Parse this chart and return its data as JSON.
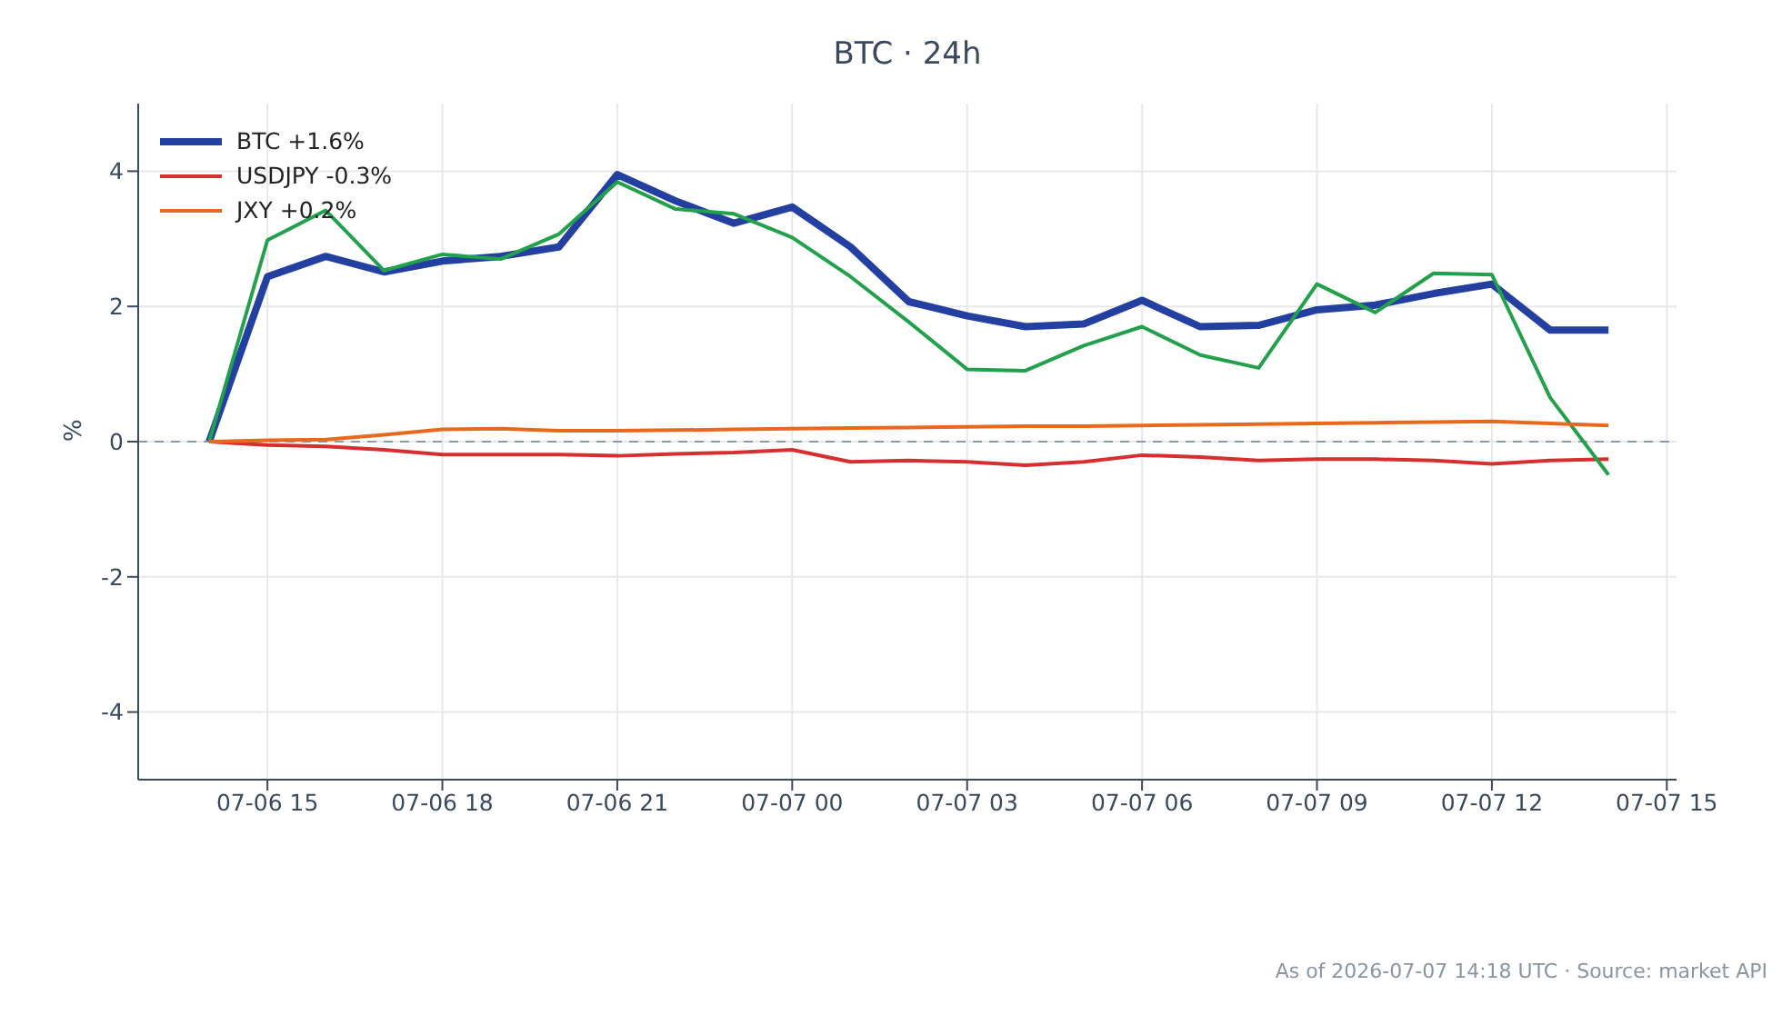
{
  "chart_data": {
    "type": "line",
    "title": "BTC · 24h",
    "ylabel": "%",
    "x": [
      "2026-07-06T14:00",
      "2026-07-06T15:00",
      "2026-07-06T16:00",
      "2026-07-06T17:00",
      "2026-07-06T18:00",
      "2026-07-06T19:00",
      "2026-07-06T20:00",
      "2026-07-06T21:00",
      "2026-07-06T22:00",
      "2026-07-06T23:00",
      "2026-07-07T00:00",
      "2026-07-07T01:00",
      "2026-07-07T02:00",
      "2026-07-07T03:00",
      "2026-07-07T04:00",
      "2026-07-07T05:00",
      "2026-07-07T06:00",
      "2026-07-07T07:00",
      "2026-07-07T08:00",
      "2026-07-07T09:00",
      "2026-07-07T10:00",
      "2026-07-07T11:00",
      "2026-07-07T12:00",
      "2026-07-07T13:00",
      "2026-07-07T14:00"
    ],
    "series": [
      {
        "name": "BTC +1.6%",
        "color": "#2340a0",
        "values": [
          0,
          2.44,
          2.74,
          2.51,
          2.67,
          2.74,
          2.88,
          3.95,
          3.56,
          3.23,
          3.47,
          2.88,
          2.07,
          1.86,
          1.7,
          1.74,
          2.09,
          1.7,
          1.72,
          1.95,
          2.02,
          2.19,
          2.33,
          1.65,
          1.65
        ]
      },
      {
        "name": "USDJPY -0.3%",
        "color": "#d62f2f",
        "values": [
          0,
          -0.05,
          -0.07,
          -0.12,
          -0.19,
          -0.19,
          -0.19,
          -0.21,
          -0.18,
          -0.16,
          -0.12,
          -0.3,
          -0.28,
          -0.3,
          -0.35,
          -0.3,
          -0.2,
          -0.23,
          -0.28,
          -0.26,
          -0.26,
          -0.28,
          -0.33,
          -0.28,
          -0.26
        ]
      },
      {
        "color": "#22a04b",
        "values": [
          0,
          2.98,
          3.42,
          2.53,
          2.77,
          2.7,
          3.07,
          3.84,
          3.44,
          3.37,
          3.02,
          2.44,
          1.77,
          1.07,
          1.05,
          1.42,
          1.7,
          1.28,
          1.09,
          2.33,
          1.91,
          2.49,
          2.47,
          0.65,
          -0.49
        ]
      },
      {
        "name": "JXY +0.2%",
        "color": "#e8691e",
        "values": [
          0,
          0.02,
          0.03,
          0.1,
          0.18,
          0.19,
          0.16,
          0.16,
          0.17,
          0.18,
          0.19,
          0.2,
          0.21,
          0.22,
          0.23,
          0.23,
          0.24,
          0.25,
          0.26,
          0.27,
          0.28,
          0.29,
          0.3,
          0.27,
          0.24
        ]
      }
    ],
    "xlim": [
      "2026-07-06T12:47",
      "2026-07-07T15:10"
    ],
    "xticks": [
      {
        "value": "2026-07-06T15:00",
        "label": "07-06 15"
      },
      {
        "value": "2026-07-06T18:00",
        "label": "07-06 18"
      },
      {
        "value": "2026-07-06T21:00",
        "label": "07-06 21"
      },
      {
        "value": "2026-07-07T00:00",
        "label": "07-07 00"
      },
      {
        "value": "2026-07-07T03:00",
        "label": "07-07 03"
      },
      {
        "value": "2026-07-07T06:00",
        "label": "07-07 06"
      },
      {
        "value": "2026-07-07T09:00",
        "label": "07-07 09"
      },
      {
        "value": "2026-07-07T12:00",
        "label": "07-07 12"
      },
      {
        "value": "2026-07-07T15:00",
        "label": "07-07 15"
      }
    ],
    "ylim": [
      -5,
      5
    ],
    "yticks": [
      -4,
      -2,
      0,
      2,
      4
    ],
    "ref_lines": [
      {
        "axis": "y",
        "value": 0,
        "color": "#8a9bb0",
        "line_style": "dashed"
      }
    ],
    "grid": true,
    "legend": "top left",
    "marker": "none",
    "line_style": "solid",
    "annotations": [
      "As of 2026-07-07 14:18 UTC · Source: market API"
    ]
  }
}
